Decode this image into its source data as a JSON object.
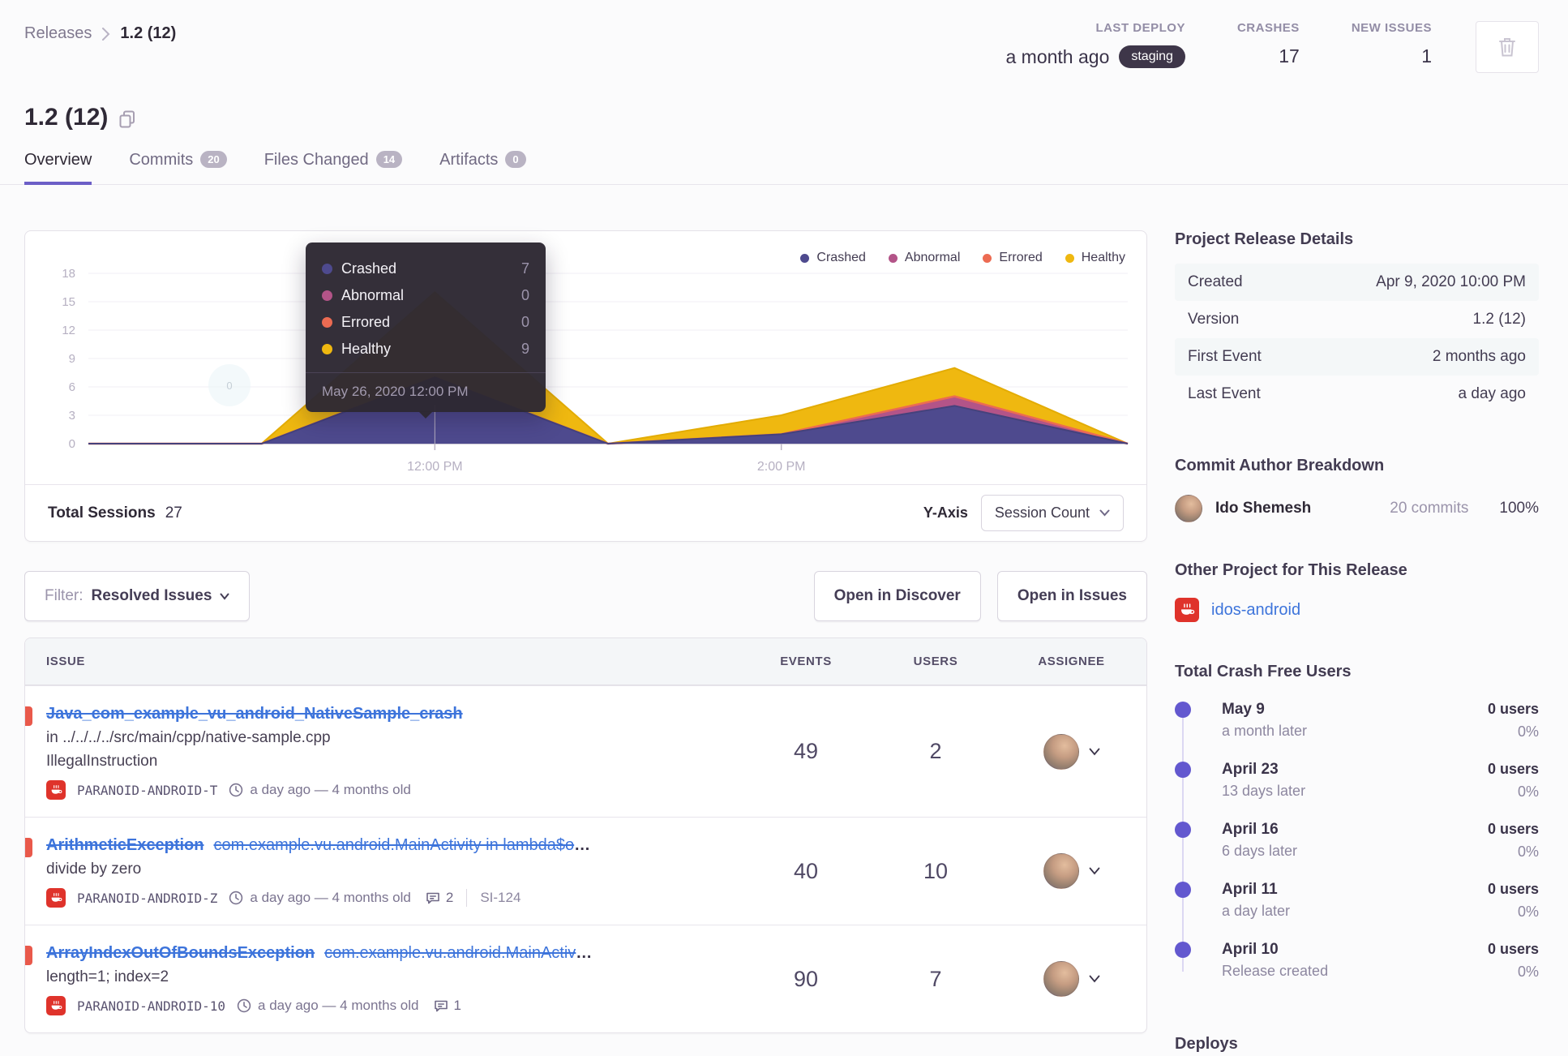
{
  "breadcrumb": {
    "root": "Releases",
    "current": "1.2 (12)"
  },
  "header": {
    "stats": [
      {
        "label": "LAST DEPLOY",
        "value": "a month ago",
        "badge": "staging"
      },
      {
        "label": "CRASHES",
        "value": "17"
      },
      {
        "label": "NEW ISSUES",
        "value": "1"
      }
    ]
  },
  "page_title": "1.2 (12)",
  "tabs": {
    "items": [
      {
        "label": "Overview"
      },
      {
        "label": "Commits",
        "badge": "20"
      },
      {
        "label": "Files Changed",
        "badge": "14"
      },
      {
        "label": "Artifacts",
        "badge": "0"
      }
    ]
  },
  "colors": {
    "accent": "#6c5fc7",
    "link_blue": "#3d74db",
    "error_red": "#e9594b",
    "project_red": "#df332b"
  },
  "chart_data": {
    "type": "area",
    "stacked": true,
    "x": [
      "10:00 AM",
      "11:00 AM",
      "12:00 PM",
      "1:00 PM",
      "2:00 PM",
      "3:00 PM",
      "4:00 PM"
    ],
    "series": [
      {
        "name": "Crashed",
        "color": "#4e4a8e",
        "values": [
          0,
          0,
          7,
          0,
          1,
          4,
          0
        ]
      },
      {
        "name": "Abnormal",
        "color": "#b35488",
        "values": [
          0,
          0,
          0,
          0,
          0,
          1,
          0
        ]
      },
      {
        "name": "Errored",
        "color": "#ec6b52",
        "values": [
          0,
          0,
          0,
          0,
          0,
          0,
          0
        ]
      },
      {
        "name": "Healthy",
        "color": "#efb810",
        "values": [
          0,
          0,
          9,
          0,
          2,
          3,
          0
        ]
      }
    ],
    "ylim": [
      0,
      18
    ],
    "yticks": [
      0,
      3,
      6,
      9,
      12,
      15,
      18
    ],
    "xticks_shown": [
      "12:00 PM",
      "2:00 PM"
    ],
    "grid": "horizontal",
    "legend_position": "top-right"
  },
  "chart_tooltip": {
    "anchor": "12:00 PM",
    "date": "May 26, 2020 12:00 PM",
    "rows": [
      {
        "label": "Crashed",
        "value": 7
      },
      {
        "label": "Abnormal",
        "value": 0
      },
      {
        "label": "Errored",
        "value": 0
      },
      {
        "label": "Healthy",
        "value": 9
      }
    ]
  },
  "chart_footer": {
    "sessions_label": "Total Sessions",
    "sessions_value": "27",
    "yaxis_label": "Y-Axis",
    "yaxis_value": "Session Count"
  },
  "filter_bar": {
    "prefix": "Filter:",
    "value": "Resolved Issues",
    "discover": "Open in Discover",
    "issues": "Open in Issues"
  },
  "table": {
    "headers": {
      "issue": "ISSUE",
      "events": "EVENTS",
      "users": "USERS",
      "assignee": "ASSIGNEE"
    },
    "issues": [
      {
        "title": "Java_com_example_vu_android_NativeSample_crash",
        "location": "in ../../../../src/main/cpp/native-sample.cpp",
        "culprit": "IllegalInstruction",
        "project": "PARANOID-ANDROID-T",
        "age": "a day ago — 4 months old",
        "events": "49",
        "users": "2"
      },
      {
        "title": "ArithmeticException",
        "subtitle": "com.example.vu.android.MainActivity in lambda$o",
        "ellipsis": "…",
        "culprit": "divide by zero",
        "project": "PARANOID-ANDROID-Z",
        "age": "a day ago — 4 months old",
        "comments": "2",
        "ticket": "SI-124",
        "events": "40",
        "users": "10"
      },
      {
        "title": "ArrayIndexOutOfBoundsException",
        "subtitle": "com.example.vu.android.MainActiv",
        "ellipsis": "…",
        "culprit": "length=1; index=2",
        "project": "PARANOID-ANDROID-10",
        "age": "a day ago — 4 months old",
        "comments": "1",
        "events": "90",
        "users": "7"
      }
    ]
  },
  "sidebar": {
    "details_title": "Project Release Details",
    "details": [
      {
        "label": "Created",
        "value": "Apr 9, 2020 10:00 PM"
      },
      {
        "label": "Version",
        "value": "1.2 (12)"
      },
      {
        "label": "First Event",
        "value": "2 months ago"
      },
      {
        "label": "Last Event",
        "value": "a day ago"
      }
    ],
    "authors_title": "Commit Author Breakdown",
    "author": {
      "name": "Ido Shemesh",
      "commits": "20 commits",
      "percent": "100%"
    },
    "other_title": "Other Project for This Release",
    "other_project": "idos-android",
    "crashfree_title": "Total Crash Free Users",
    "crashfree": [
      {
        "date": "May 9",
        "offset": "a month later",
        "users": "0 users",
        "percent": "0%"
      },
      {
        "date": "April 23",
        "offset": "13 days later",
        "users": "0 users",
        "percent": "0%"
      },
      {
        "date": "April 16",
        "offset": "6 days later",
        "users": "0 users",
        "percent": "0%"
      },
      {
        "date": "April 11",
        "offset": "a day later",
        "users": "0 users",
        "percent": "0%"
      },
      {
        "date": "April 10",
        "offset": "Release created",
        "users": "0 users",
        "percent": "0%"
      }
    ],
    "deploys_title": "Deploys"
  }
}
